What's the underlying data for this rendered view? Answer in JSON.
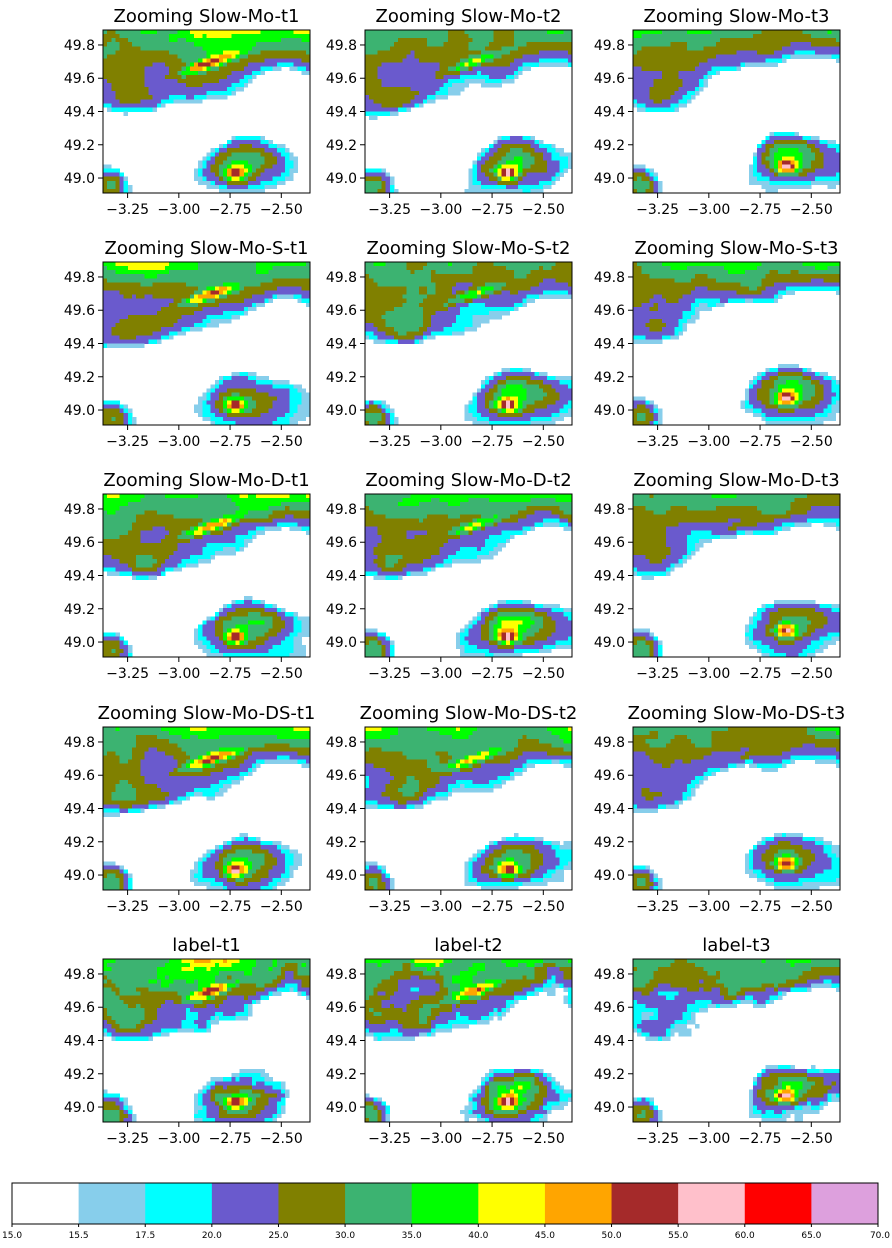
{
  "chart_data": {
    "type": "heatmap",
    "layout": {
      "rows": 5,
      "cols": 3
    },
    "panels": [
      {
        "title": "Zooming Slow-Mo-t1"
      },
      {
        "title": "Zooming Slow-Mo-t2"
      },
      {
        "title": "Zooming Slow-Mo-t3"
      },
      {
        "title": "Zooming Slow-Mo-S-t1"
      },
      {
        "title": "Zooming Slow-Mo-S-t2"
      },
      {
        "title": "Zooming Slow-Mo-S-t3"
      },
      {
        "title": "Zooming Slow-Mo-D-t1"
      },
      {
        "title": "Zooming Slow-Mo-D-t2"
      },
      {
        "title": "Zooming Slow-Mo-D-t3"
      },
      {
        "title": "Zooming Slow-Mo-DS-t1"
      },
      {
        "title": "Zooming Slow-Mo-DS-t2"
      },
      {
        "title": "Zooming Slow-Mo-DS-t3"
      },
      {
        "title": "label-t1"
      },
      {
        "title": "label-t2"
      },
      {
        "title": "label-t3"
      }
    ],
    "x_ticks": [
      "−3.25",
      "−3.00",
      "−2.75",
      "−2.50"
    ],
    "x_tick_values": [
      -3.25,
      -3.0,
      -2.75,
      -2.5
    ],
    "xlim": [
      -3.37,
      -2.36
    ],
    "y_ticks": [
      "49.0",
      "49.2",
      "49.4",
      "49.6",
      "49.8"
    ],
    "y_tick_values": [
      49.0,
      49.2,
      49.4,
      49.6,
      49.8
    ],
    "ylim": [
      48.91,
      49.89
    ],
    "colorbar": {
      "placement": "bottom",
      "tick_labels": [
        "15.0",
        "15.5",
        "17.5",
        "20.0",
        "25.0",
        "30.0",
        "35.0",
        "40.0",
        "45.0",
        "50.0",
        "55.0",
        "60.0",
        "65.0",
        "70.0"
      ],
      "bounds": [
        15.0,
        15.5,
        17.5,
        20.0,
        25.0,
        30.0,
        35.0,
        40.0,
        45.0,
        50.0,
        55.0,
        60.0,
        65.0,
        70.0
      ],
      "colors": [
        "#ffffff",
        "#87ceeb",
        "#00ffff",
        "#6a5acd",
        "#808000",
        "#3cb371",
        "#00ff00",
        "#ffff00",
        "#ffa500",
        "#a52a2a",
        "#ffc0cb",
        "#ff0000",
        "#dda0dd"
      ]
    }
  }
}
